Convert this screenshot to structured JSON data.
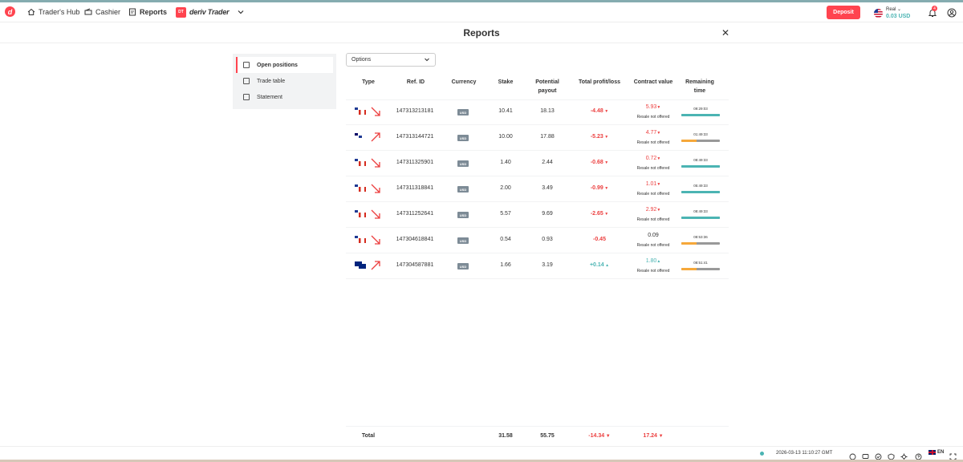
{
  "header": {
    "logo_letter": "d",
    "nav": [
      {
        "label": "Trader's Hub",
        "icon": "home-icon"
      },
      {
        "label": "Cashier",
        "icon": "cashier-icon"
      },
      {
        "label": "Reports",
        "icon": "reports-icon"
      }
    ],
    "platform": {
      "badge": "DT",
      "name": "deriv Trader",
      "icon": "chevron-down-icon"
    },
    "deposit_label": "Deposit",
    "account": {
      "type": "Real",
      "balance": "0.03 USD"
    },
    "notifications_count": "4"
  },
  "page": {
    "title": "Reports"
  },
  "sidebar": {
    "items": [
      {
        "label": "Open positions",
        "active": true
      },
      {
        "label": "Trade table",
        "active": false
      },
      {
        "label": "Statement",
        "active": false
      }
    ]
  },
  "filter": {
    "selected": "Options"
  },
  "table": {
    "headers": {
      "type": "Type",
      "ref": "Ref. ID",
      "currency": "Currency",
      "stake": "Stake",
      "payout_1": "Potential",
      "payout_2": "payout",
      "pl": "Total profit/loss",
      "cv": "Contract value",
      "rt_1": "Remaining",
      "rt_2": "time"
    },
    "rows": [
      {
        "flags": [
          "us",
          "ca"
        ],
        "direction": "down",
        "ref": "147313213181",
        "currency": "USD",
        "stake": "10.41",
        "payout": "18.13",
        "pl": "-4.48",
        "pl_dir": "loss",
        "cv": "5.93",
        "cv_dir": "loss",
        "resale": "Resale not offered",
        "remaining": "09:29:03",
        "remaining_pct": 0.99,
        "bar_color": "#4bb4b3"
      },
      {
        "flags": [
          "my",
          "us"
        ],
        "direction": "up",
        "ref": "147313144721",
        "currency": "USD",
        "stake": "10.00",
        "payout": "17.88",
        "pl": "-5.23",
        "pl_dir": "loss",
        "cv": "4.77",
        "cv_dir": "loss",
        "resale": "Resale not offered",
        "remaining": "01:49:33",
        "remaining_pct": 0.4,
        "bar_color": "#f6a83a"
      },
      {
        "flags": [
          "us",
          "ca"
        ],
        "direction": "down",
        "ref": "147311325901",
        "currency": "USD",
        "stake": "1.40",
        "payout": "2.44",
        "pl": "-0.68",
        "pl_dir": "loss",
        "cv": "0.72",
        "cv_dir": "loss",
        "resale": "Resale not offered",
        "remaining": "08:49:33",
        "remaining_pct": 0.99,
        "bar_color": "#4bb4b3"
      },
      {
        "flags": [
          "us",
          "ca"
        ],
        "direction": "down",
        "ref": "147311318841",
        "currency": "USD",
        "stake": "2.00",
        "payout": "3.49",
        "pl": "-0.99",
        "pl_dir": "loss",
        "cv": "1.01",
        "cv_dir": "loss",
        "resale": "Resale not offered",
        "remaining": "05:49:33",
        "remaining_pct": 0.99,
        "bar_color": "#4bb4b3"
      },
      {
        "flags": [
          "us",
          "ca"
        ],
        "direction": "down",
        "ref": "147311252641",
        "currency": "USD",
        "stake": "5.57",
        "payout": "9.69",
        "pl": "-2.65",
        "pl_dir": "loss",
        "cv": "2.92",
        "cv_dir": "loss",
        "resale": "Resale not offered",
        "remaining": "08:49:33",
        "remaining_pct": 0.99,
        "bar_color": "#4bb4b3"
      },
      {
        "flags": [
          "us",
          "ca"
        ],
        "direction": "down",
        "ref": "147304618841",
        "currency": "USD",
        "stake": "0.54",
        "payout": "0.93",
        "pl": "-0.45",
        "pl_dir": "loss",
        "cv": "0.09",
        "cv_dir": "none",
        "resale": "Resale not offered",
        "remaining": "08:53:36",
        "remaining_pct": 0.4,
        "bar_color": "#f6a83a"
      },
      {
        "flags": [
          "au",
          "au"
        ],
        "direction": "up",
        "ref": "147304587881",
        "currency": "USD",
        "stake": "1.66",
        "payout": "3.19",
        "pl": "+0.14",
        "pl_dir": "win",
        "cv": "1.80",
        "cv_dir": "win",
        "resale": "Resale not offered",
        "remaining": "08:51:41",
        "remaining_pct": 0.4,
        "bar_color": "#f6a83a"
      }
    ],
    "totals": {
      "label": "Total",
      "stake": "31.58",
      "payout": "55.75",
      "pl": "-14.34",
      "cv": "17.24"
    }
  },
  "statusbar": {
    "timestamp": "2026-03-13 11:10:27 GMT",
    "language": "EN",
    "icons": [
      "whatsapp-icon",
      "chat-icon",
      "responsible-trading-icon",
      "regulation-icon",
      "settings-icon",
      "help-icon",
      "theme-icon"
    ]
  },
  "colors": {
    "brand": "#ff444f",
    "profit": "#4bb4b3",
    "loss": "#ec3f3f"
  }
}
